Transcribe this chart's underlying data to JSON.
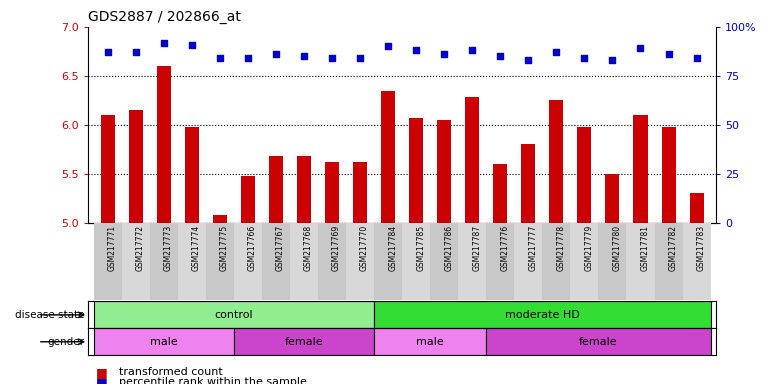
{
  "title": "GDS2887 / 202866_at",
  "samples": [
    "GSM217771",
    "GSM217772",
    "GSM217773",
    "GSM217774",
    "GSM217775",
    "GSM217766",
    "GSM217767",
    "GSM217768",
    "GSM217769",
    "GSM217770",
    "GSM217784",
    "GSM217785",
    "GSM217786",
    "GSM217787",
    "GSM217776",
    "GSM217777",
    "GSM217778",
    "GSM217779",
    "GSM217780",
    "GSM217781",
    "GSM217782",
    "GSM217783"
  ],
  "transformed_count": [
    6.1,
    6.15,
    6.6,
    5.98,
    5.08,
    5.48,
    5.68,
    5.68,
    5.62,
    5.62,
    6.35,
    6.07,
    6.05,
    6.28,
    5.6,
    5.8,
    6.25,
    5.98,
    5.5,
    6.1,
    5.98,
    5.3
  ],
  "percentile_rank": [
    87,
    87,
    92,
    91,
    84,
    84,
    86,
    85,
    84,
    84,
    90,
    88,
    86,
    88,
    85,
    83,
    87,
    84,
    83,
    89,
    86,
    84
  ],
  "ylim_left": [
    5.0,
    7.0
  ],
  "ylim_right": [
    0,
    100
  ],
  "yticks_left": [
    5.0,
    5.5,
    6.0,
    6.5,
    7.0
  ],
  "yticks_right": [
    0,
    25,
    50,
    75,
    100
  ],
  "ytick_labels_right": [
    "0",
    "25",
    "50",
    "75",
    "100%"
  ],
  "bar_color": "#cc0000",
  "dot_color": "#0000cc",
  "grid_values": [
    5.5,
    6.0,
    6.5
  ],
  "disease_state_groups": [
    {
      "label": "control",
      "start": 0,
      "end": 10,
      "color": "#90ee90"
    },
    {
      "label": "moderate HD",
      "start": 10,
      "end": 22,
      "color": "#33dd33"
    }
  ],
  "gender_groups": [
    {
      "label": "male",
      "start": 0,
      "end": 5,
      "color": "#ee82ee"
    },
    {
      "label": "female",
      "start": 5,
      "end": 10,
      "color": "#cc44cc"
    },
    {
      "label": "male",
      "start": 10,
      "end": 14,
      "color": "#ee82ee"
    },
    {
      "label": "female",
      "start": 14,
      "end": 22,
      "color": "#cc44cc"
    }
  ],
  "bar_width": 0.5,
  "bar_bottom": 5.0
}
